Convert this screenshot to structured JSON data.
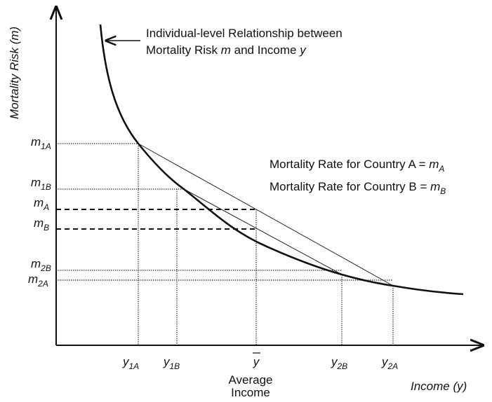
{
  "axes": {
    "y_label": "Mortality Risk (m)",
    "x_label": "Income (y)"
  },
  "curve_label": {
    "line1": "Individual-level Relationship between",
    "line2": [
      "Mortality Risk ",
      "m",
      " and Income ",
      "y"
    ]
  },
  "legend": [
    {
      "text": "Mortality Rate for Country A = ",
      "symbol": "m",
      "sub": "A"
    },
    {
      "text": "Mortality Rate for Country B = ",
      "symbol": "m",
      "sub": "B"
    }
  ],
  "y_ticks": [
    {
      "base": "m",
      "sub": "1A"
    },
    {
      "base": "m",
      "sub": "1B"
    },
    {
      "base": "m",
      "sub": "A"
    },
    {
      "base": "m",
      "sub": "B"
    },
    {
      "base": "m",
      "sub": "2B"
    },
    {
      "base": "m",
      "sub": "2A"
    }
  ],
  "x_ticks": [
    {
      "base": "y",
      "sub": "1A"
    },
    {
      "base": "y",
      "sub": "1B"
    },
    {
      "base": "y",
      "sub": "2B"
    },
    {
      "base": "y",
      "sub": "2A"
    }
  ],
  "y_bar": {
    "symbol": "y",
    "caption": [
      "Average",
      "Income"
    ]
  }
}
